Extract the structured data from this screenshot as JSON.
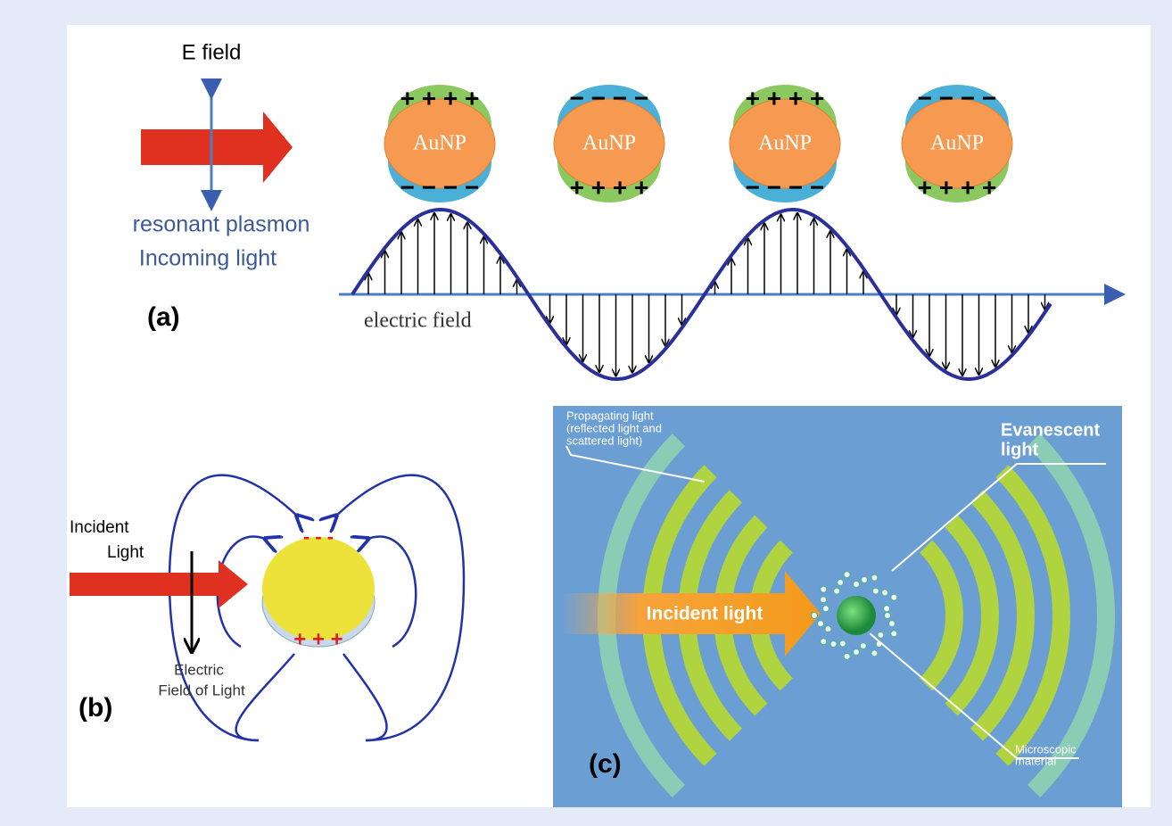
{
  "panel_a": {
    "label": "(a)",
    "e_field": "E field",
    "light_lines": [
      "resonant plasmon",
      "Incoming light"
    ],
    "particles": [
      {
        "label": "AuNP",
        "top": "+ + + +",
        "bottom": "− − − −"
      },
      {
        "label": "AuNP",
        "top": "− − − −",
        "bottom": "+ + + +"
      },
      {
        "label": "AuNP",
        "top": "+ + + +",
        "bottom": "− − − −"
      },
      {
        "label": "AuNP",
        "top": "− − − −",
        "bottom": "+ + + +"
      }
    ],
    "axis_label": "electric field"
  },
  "panel_b": {
    "label": "(b)",
    "incident_lines": [
      "Incident",
      "Light"
    ],
    "field_lines": [
      "Electric",
      "Field of Light"
    ],
    "top_charge": "- - -",
    "bottom_charge": "+ + +"
  },
  "panel_c": {
    "label": "(c)",
    "propagating_lines": [
      "Propagating light",
      "(reflected light and",
      "scattered light)"
    ],
    "evanescent_lines": [
      "Evanescent",
      "light"
    ],
    "incident": "Incident light",
    "material_lines": [
      "Microscopic",
      "material"
    ]
  }
}
